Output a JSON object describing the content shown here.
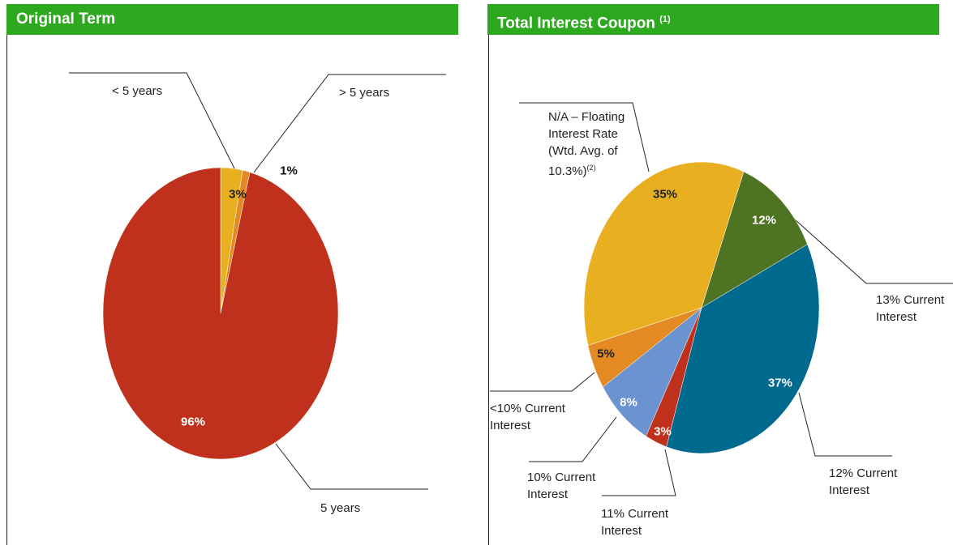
{
  "chart_data": [
    {
      "type": "pie",
      "title": "Original Term",
      "categories": [
        "< 5 years",
        "> 5 years",
        "5 years"
      ],
      "values": [
        3,
        1,
        96
      ],
      "value_labels": [
        "3%",
        "1%",
        "96%"
      ],
      "colors": [
        "#e8b020",
        "#e38a22",
        "#c0311d"
      ]
    },
    {
      "type": "pie",
      "title": "Total Interest Coupon",
      "title_note": "(1)",
      "categories": [
        "13% Current\nInterest",
        "12% Current\nInterest",
        "11% Current\nInterest",
        "10% Current\nInterest",
        "<10% Current\nInterest",
        "N/A – Floating\nInterest Rate\n(Wtd. Avg. of\n10.3%)"
      ],
      "category_note": "(2)",
      "values": [
        12,
        37,
        3,
        8,
        5,
        35
      ],
      "value_labels": [
        "12%",
        "37%",
        "3%",
        "8%",
        "5%",
        "35%"
      ],
      "colors": [
        "#4e7423",
        "#006a8e",
        "#c0311d",
        "#6b93cf",
        "#e38a22",
        "#e8b020"
      ]
    }
  ]
}
